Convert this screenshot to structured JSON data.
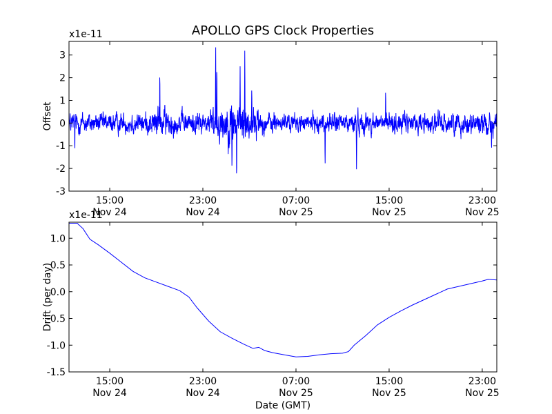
{
  "title": "APOLLO GPS Clock Properties",
  "chart_data": [
    {
      "type": "line",
      "ylabel": "Offset",
      "xlabel": "",
      "scale_label": "x1e-11",
      "ylim": [
        -3,
        3.6
      ],
      "xlim": [
        11.5,
        48.25
      ],
      "yticks": [
        {
          "v": 3,
          "label": "3"
        },
        {
          "v": 2,
          "label": "2"
        },
        {
          "v": 1,
          "label": "1"
        },
        {
          "v": 0,
          "label": "0"
        },
        {
          "v": -1,
          "label": "-1"
        },
        {
          "v": -2,
          "label": "-2"
        },
        {
          "v": -3,
          "label": "-3"
        }
      ],
      "xticks": [
        {
          "v": 15,
          "time": "15:00",
          "date": "Nov 24"
        },
        {
          "v": 23,
          "time": "23:00",
          "date": "Nov 24"
        },
        {
          "v": 31,
          "time": "07:00",
          "date": "Nov 25"
        },
        {
          "v": 39,
          "time": "15:00",
          "date": "Nov 25"
        },
        {
          "v": 47,
          "time": "23:00",
          "date": "Nov 25"
        }
      ],
      "series": [
        {
          "name": "offset",
          "color": "#0000ff",
          "noise_envelope": [
            [
              11.5,
              0.45
            ],
            [
              15.5,
              0.4
            ],
            [
              18.2,
              0.45
            ],
            [
              19.3,
              0.7
            ],
            [
              20.5,
              0.45
            ],
            [
              23.0,
              0.45
            ],
            [
              24.2,
              0.7
            ],
            [
              25.3,
              0.9
            ],
            [
              27.0,
              0.8
            ],
            [
              28.3,
              0.45
            ],
            [
              31.0,
              0.35
            ],
            [
              36.0,
              0.45
            ],
            [
              41.0,
              0.4
            ],
            [
              48.25,
              0.5
            ]
          ],
          "spikes": [
            {
              "x": 19.3,
              "y": 2.5
            },
            {
              "x": 24.1,
              "y": 3.6
            },
            {
              "x": 24.2,
              "y": 2.8
            },
            {
              "x": 25.5,
              "y": -2.2
            },
            {
              "x": 25.9,
              "y": -2.8
            },
            {
              "x": 26.2,
              "y": 2.5
            },
            {
              "x": 26.6,
              "y": 3.4
            },
            {
              "x": 27.2,
              "y": 1.7
            },
            {
              "x": 33.5,
              "y": -2.05
            },
            {
              "x": 36.2,
              "y": -2.1
            },
            {
              "x": 38.7,
              "y": 1.6
            },
            {
              "x": 12.0,
              "y": -1.35
            },
            {
              "x": 47.8,
              "y": -1.35
            }
          ]
        }
      ]
    },
    {
      "type": "line",
      "ylabel": "Drift (per day)",
      "xlabel": "Date (GMT)",
      "scale_label": "x1e-11",
      "ylim": [
        -1.5,
        1.3
      ],
      "xlim": [
        11.5,
        48.25
      ],
      "yticks": [
        {
          "v": 1.0,
          "label": "1.0"
        },
        {
          "v": 0.5,
          "label": "0.5"
        },
        {
          "v": 0.0,
          "label": "0.0"
        },
        {
          "v": -0.5,
          "label": "-0.5"
        },
        {
          "v": -1.0,
          "label": "-1.0"
        },
        {
          "v": -1.5,
          "label": "-1.5"
        }
      ],
      "xticks": [
        {
          "v": 15,
          "time": "15:00",
          "date": "Nov 24"
        },
        {
          "v": 23,
          "time": "23:00",
          "date": "Nov 24"
        },
        {
          "v": 31,
          "time": "07:00",
          "date": "Nov 25"
        },
        {
          "v": 39,
          "time": "15:00",
          "date": "Nov 25"
        },
        {
          "v": 47,
          "time": "23:00",
          "date": "Nov 25"
        }
      ],
      "series": [
        {
          "name": "drift",
          "color": "#0000ff",
          "points": [
            [
              11.5,
              1.28
            ],
            [
              12.2,
              1.28
            ],
            [
              12.7,
              1.18
            ],
            [
              13.3,
              0.98
            ],
            [
              14.0,
              0.88
            ],
            [
              15.0,
              0.72
            ],
            [
              16.0,
              0.55
            ],
            [
              17.0,
              0.38
            ],
            [
              18.0,
              0.26
            ],
            [
              19.0,
              0.18
            ],
            [
              20.0,
              0.1
            ],
            [
              21.0,
              0.02
            ],
            [
              21.8,
              -0.1
            ],
            [
              22.5,
              -0.3
            ],
            [
              23.5,
              -0.55
            ],
            [
              24.5,
              -0.75
            ],
            [
              25.5,
              -0.87
            ],
            [
              26.5,
              -0.98
            ],
            [
              27.3,
              -1.06
            ],
            [
              27.8,
              -1.04
            ],
            [
              28.3,
              -1.1
            ],
            [
              29.0,
              -1.14
            ],
            [
              30.0,
              -1.18
            ],
            [
              31.0,
              -1.22
            ],
            [
              32.0,
              -1.21
            ],
            [
              33.0,
              -1.18
            ],
            [
              34.0,
              -1.16
            ],
            [
              35.0,
              -1.15
            ],
            [
              35.5,
              -1.12
            ],
            [
              36.0,
              -1.0
            ],
            [
              37.0,
              -0.82
            ],
            [
              38.0,
              -0.62
            ],
            [
              39.0,
              -0.48
            ],
            [
              40.0,
              -0.36
            ],
            [
              41.0,
              -0.25
            ],
            [
              42.0,
              -0.15
            ],
            [
              43.0,
              -0.05
            ],
            [
              44.0,
              0.05
            ],
            [
              45.0,
              0.1
            ],
            [
              46.0,
              0.15
            ],
            [
              47.0,
              0.2
            ],
            [
              47.5,
              0.23
            ],
            [
              48.25,
              0.22
            ]
          ]
        }
      ]
    }
  ]
}
